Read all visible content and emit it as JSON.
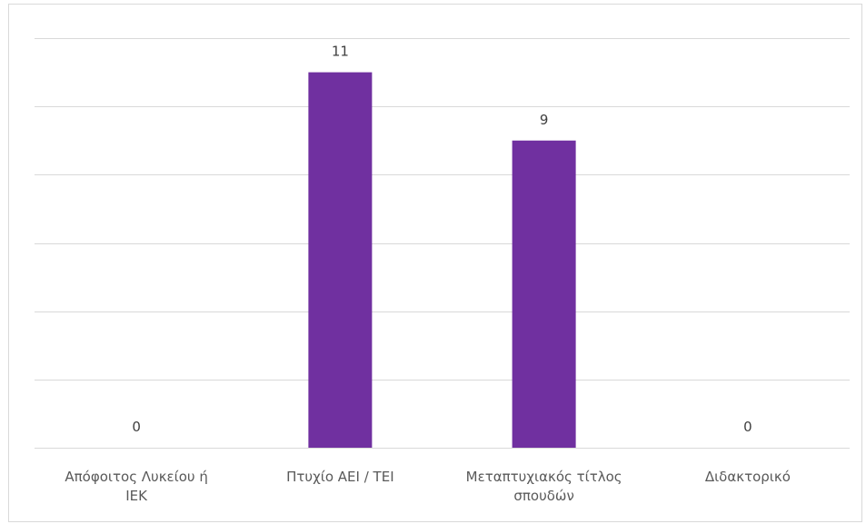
{
  "chart_data": {
    "type": "bar",
    "categories": [
      [
        "Απόφοιτος Λυκείου ή",
        "ΙΕΚ"
      ],
      [
        "Πτυχίο ΑΕΙ / ΤΕΙ"
      ],
      [
        "Μεταπτυχιακός τίτλος",
        "σπουδών"
      ],
      [
        "Διδακτορικό"
      ]
    ],
    "values": [
      0,
      11,
      9,
      0
    ],
    "data_labels": [
      "0",
      "11",
      "9",
      "0"
    ],
    "ylim": [
      0,
      12
    ],
    "y_grid_step": 2,
    "grid": true,
    "legend": "none",
    "bar_color": "#7030a0"
  }
}
